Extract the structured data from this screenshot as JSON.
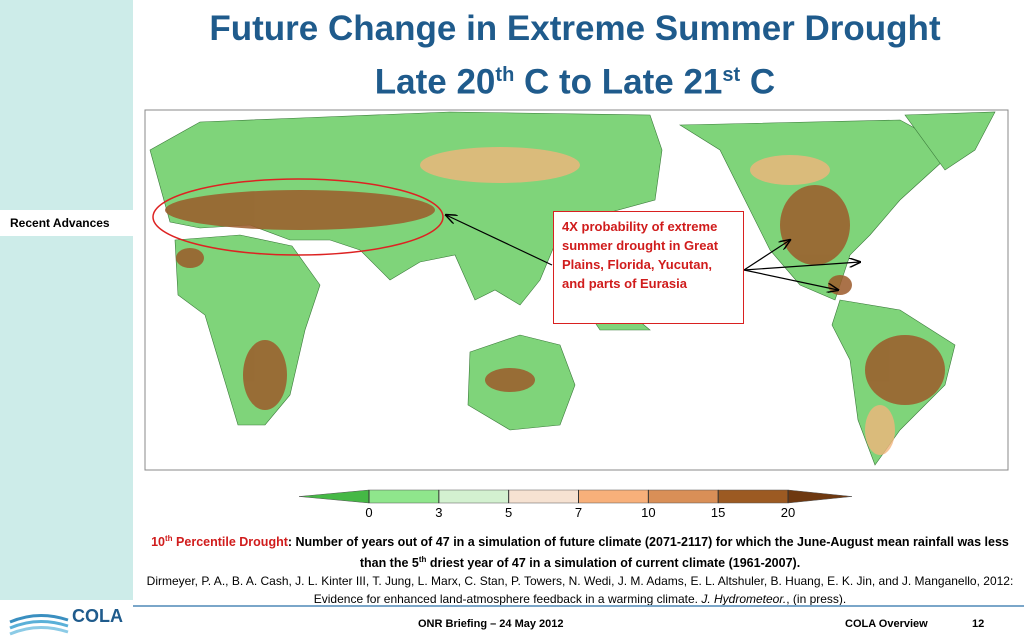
{
  "sidebar": {
    "active": "Recent Advances"
  },
  "title": {
    "line1": "Future Change in Extreme Summer Drought",
    "line2": [
      "Late 20",
      "th",
      " C to Late 21",
      "st",
      " C"
    ]
  },
  "annotation": "4X probability of extreme summer drought in Great Plains, Florida, Yucutan, and parts of Eurasia",
  "colorbar": {
    "ticks": [
      0,
      3,
      5,
      7,
      10,
      15,
      20
    ],
    "colors": [
      "#45b845",
      "#8fe68c",
      "#d3f1d0",
      "#f6e2d2",
      "#f8b07a",
      "#d98f57",
      "#9c5a22",
      "#6e3810"
    ]
  },
  "caption": {
    "term": [
      "10",
      "th",
      " Percentile Drought"
    ],
    "text": [
      "Number of years out of 47 in a simulation of future climate (2071-2117) for which the June-August mean rainfall was less than the 5",
      "th",
      " driest year of 47 in a simulation of current climate (1961-2007)."
    ]
  },
  "citation": {
    "text": "Dirmeyer, P. A., B. A. Cash, J. L. Kinter III, T. Jung, L. Marx, C. Stan, P. Towers, N. Wedi, J. M. Adams, E. L. Altshuler, B. Huang, E. K. Jin, and J. Manganello, 2012: Evidence for enhanced land-atmosphere feedback in a warming climate.",
    "journal": "J. Hydrometeor.",
    "tail": ", (in press)."
  },
  "logo": "COLA",
  "footer": {
    "event": "ONR Briefing – 24 May 2012",
    "section": "COLA Overview",
    "page": "12"
  }
}
